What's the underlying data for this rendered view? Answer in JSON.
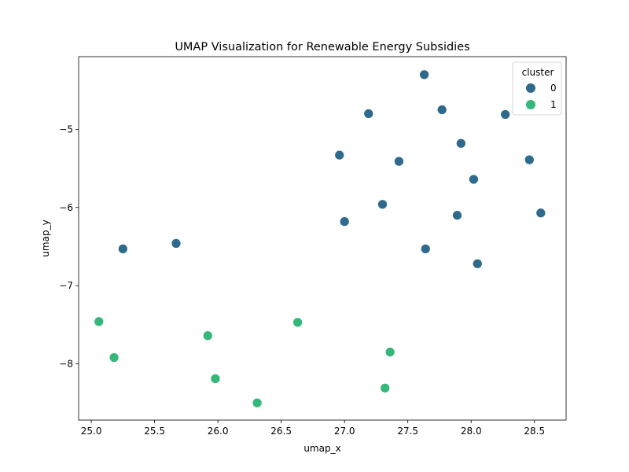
{
  "chart_data": {
    "type": "scatter",
    "title": "UMAP Visualization for Renewable Energy Subsidies",
    "xlabel": "umap_x",
    "ylabel": "umap_y",
    "xlim": [
      24.9,
      28.75
    ],
    "ylim": [
      -8.72,
      -4.07
    ],
    "x_ticks": [
      25.0,
      25.5,
      26.0,
      26.5,
      27.0,
      27.5,
      28.0,
      28.5
    ],
    "x_tick_labels": [
      "25.0",
      "25.5",
      "26.0",
      "26.5",
      "27.0",
      "27.5",
      "28.0",
      "28.5"
    ],
    "y_ticks": [
      -8,
      -7,
      -6,
      -5
    ],
    "y_tick_labels": [
      "−8",
      "−7",
      "−6",
      "−5"
    ],
    "grid": false,
    "legend": {
      "title": "cluster",
      "placement": "top-right",
      "entries": [
        {
          "label": "0",
          "color": "#2e6a8d"
        },
        {
          "label": "1",
          "color": "#35b779"
        }
      ]
    },
    "series": [
      {
        "name": "0",
        "color": "#2e6a8d",
        "points": [
          {
            "x": 27.63,
            "y": -4.3
          },
          {
            "x": 27.19,
            "y": -4.8
          },
          {
            "x": 27.77,
            "y": -4.75
          },
          {
            "x": 28.27,
            "y": -4.81
          },
          {
            "x": 27.92,
            "y": -5.18
          },
          {
            "x": 26.96,
            "y": -5.33
          },
          {
            "x": 27.43,
            "y": -5.41
          },
          {
            "x": 28.46,
            "y": -5.39
          },
          {
            "x": 28.02,
            "y": -5.64
          },
          {
            "x": 27.3,
            "y": -5.96
          },
          {
            "x": 27.0,
            "y": -6.18
          },
          {
            "x": 27.89,
            "y": -6.1
          },
          {
            "x": 28.55,
            "y": -6.07
          },
          {
            "x": 25.25,
            "y": -6.53
          },
          {
            "x": 25.67,
            "y": -6.46
          },
          {
            "x": 27.64,
            "y": -6.53
          },
          {
            "x": 28.05,
            "y": -6.72
          }
        ]
      },
      {
        "name": "1",
        "color": "#35b779",
        "points": [
          {
            "x": 25.06,
            "y": -7.46
          },
          {
            "x": 25.18,
            "y": -7.92
          },
          {
            "x": 25.92,
            "y": -7.64
          },
          {
            "x": 25.98,
            "y": -8.19
          },
          {
            "x": 26.63,
            "y": -7.47
          },
          {
            "x": 26.31,
            "y": -8.5
          },
          {
            "x": 27.36,
            "y": -7.85
          },
          {
            "x": 27.32,
            "y": -8.31
          }
        ]
      }
    ]
  }
}
